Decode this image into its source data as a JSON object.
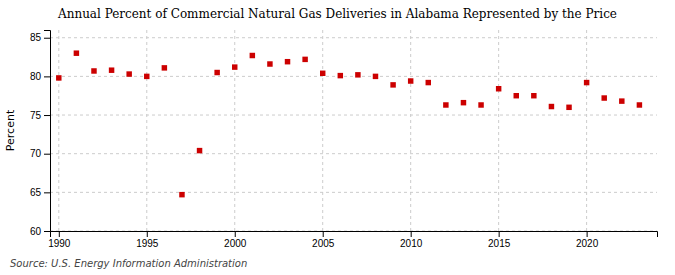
{
  "chart_data": {
    "type": "scatter",
    "title": "Annual Percent of Commercial Natural Gas Deliveries in Alabama Represented by the Price",
    "ylabel": "Percent",
    "annotations": [
      "Source: U.S. Energy Information Administration"
    ],
    "color": "#cc0000",
    "marker": "square",
    "grid": true,
    "xlim": [
      1989.5,
      2024
    ],
    "ylim": [
      60,
      86
    ],
    "xticks": [
      1990,
      1995,
      2000,
      2005,
      2010,
      2015,
      2020
    ],
    "yticks": [
      60,
      65,
      70,
      75,
      80,
      85
    ],
    "x": [
      1990,
      1991,
      1992,
      1993,
      1994,
      1995,
      1996,
      1997,
      1998,
      1999,
      2000,
      2001,
      2002,
      2003,
      2004,
      2005,
      2006,
      2007,
      2008,
      2009,
      2010,
      2011,
      2012,
      2013,
      2014,
      2015,
      2016,
      2017,
      2018,
      2019,
      2020,
      2021,
      2022,
      2023
    ],
    "values": [
      79.8,
      83.0,
      80.7,
      80.8,
      80.3,
      80.0,
      81.1,
      64.7,
      70.4,
      80.5,
      81.2,
      82.7,
      81.6,
      81.9,
      82.2,
      80.4,
      80.1,
      80.2,
      80.0,
      78.9,
      79.4,
      79.2,
      76.3,
      76.6,
      76.3,
      78.4,
      77.5,
      77.5,
      76.1,
      76.0,
      79.2,
      77.2,
      76.8,
      76.3
    ]
  }
}
